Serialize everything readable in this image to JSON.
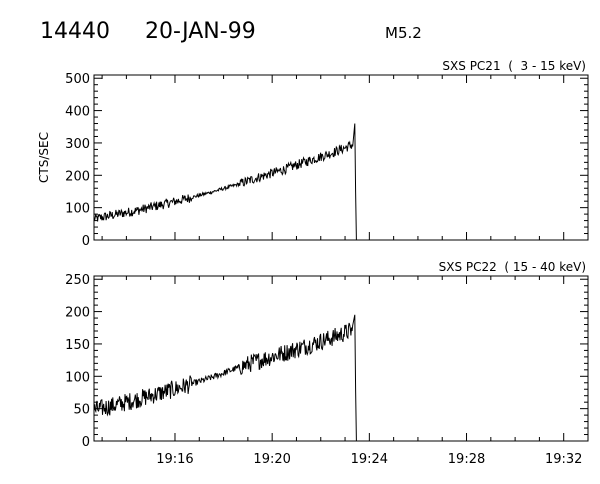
{
  "header": {
    "event_id": "14440",
    "date": "20-JAN-99",
    "flare_class": "M5.2"
  },
  "chart_data": [
    {
      "type": "line",
      "title": "SXS PC21  (  3 - 15 keV)",
      "ylabel": "CTS/SEC",
      "xlabel": "",
      "ylim": [
        0,
        510
      ],
      "yticks": [
        0,
        100,
        200,
        300,
        400,
        500
      ],
      "ytick_labels": [
        "0",
        "100",
        "200",
        "300",
        "400",
        "500"
      ],
      "xlim": [
        "19:12:40",
        "19:33:00"
      ],
      "xticks": [
        "19:16",
        "19:20",
        "19:24",
        "19:28",
        "19:32"
      ],
      "xtick_labels": [],
      "series": [
        {
          "points": [
            [
              "19:12:40",
              65
            ],
            [
              "19:13:30",
              78
            ],
            [
              "19:14:30",
              92
            ],
            [
              "19:15:30",
              110
            ],
            [
              "19:16:30",
              128
            ],
            [
              "19:17:30",
              148
            ],
            [
              "19:18:30",
              170
            ],
            [
              "19:19:30",
              195
            ],
            [
              "19:20:30",
              218
            ],
            [
              "19:21:30",
              245
            ],
            [
              "19:22:30",
              270
            ],
            [
              "19:23:20",
              295
            ],
            [
              "19:23:24",
              360
            ],
            [
              "19:23:26",
              150
            ],
            [
              "19:23:28",
              0
            ]
          ],
          "noise": 15
        }
      ]
    },
    {
      "type": "line",
      "title": "SXS PC22  ( 15 - 40 keV)",
      "ylabel": "",
      "xlabel": "",
      "ylim": [
        0,
        255
      ],
      "yticks": [
        0,
        50,
        100,
        150,
        200,
        250
      ],
      "ytick_labels": [
        "0",
        "50",
        "100",
        "150",
        "200",
        "250"
      ],
      "xlim": [
        "19:12:40",
        "19:33:00"
      ],
      "xticks": [
        "19:16",
        "19:20",
        "19:24",
        "19:28",
        "19:32"
      ],
      "xtick_labels": [
        "19:16",
        "19:20",
        "19:24",
        "19:28",
        "19:32"
      ],
      "series": [
        {
          "points": [
            [
              "19:12:40",
              48
            ],
            [
              "19:13:30",
              55
            ],
            [
              "19:14:30",
              65
            ],
            [
              "19:15:30",
              75
            ],
            [
              "19:16:30",
              86
            ],
            [
              "19:17:30",
              98
            ],
            [
              "19:18:30",
              112
            ],
            [
              "19:19:30",
              125
            ],
            [
              "19:20:30",
              136
            ],
            [
              "19:21:30",
              148
            ],
            [
              "19:22:30",
              160
            ],
            [
              "19:23:20",
              172
            ],
            [
              "19:23:24",
              195
            ],
            [
              "19:23:26",
              80
            ],
            [
              "19:23:28",
              0
            ]
          ],
          "noise": 14
        }
      ]
    }
  ]
}
